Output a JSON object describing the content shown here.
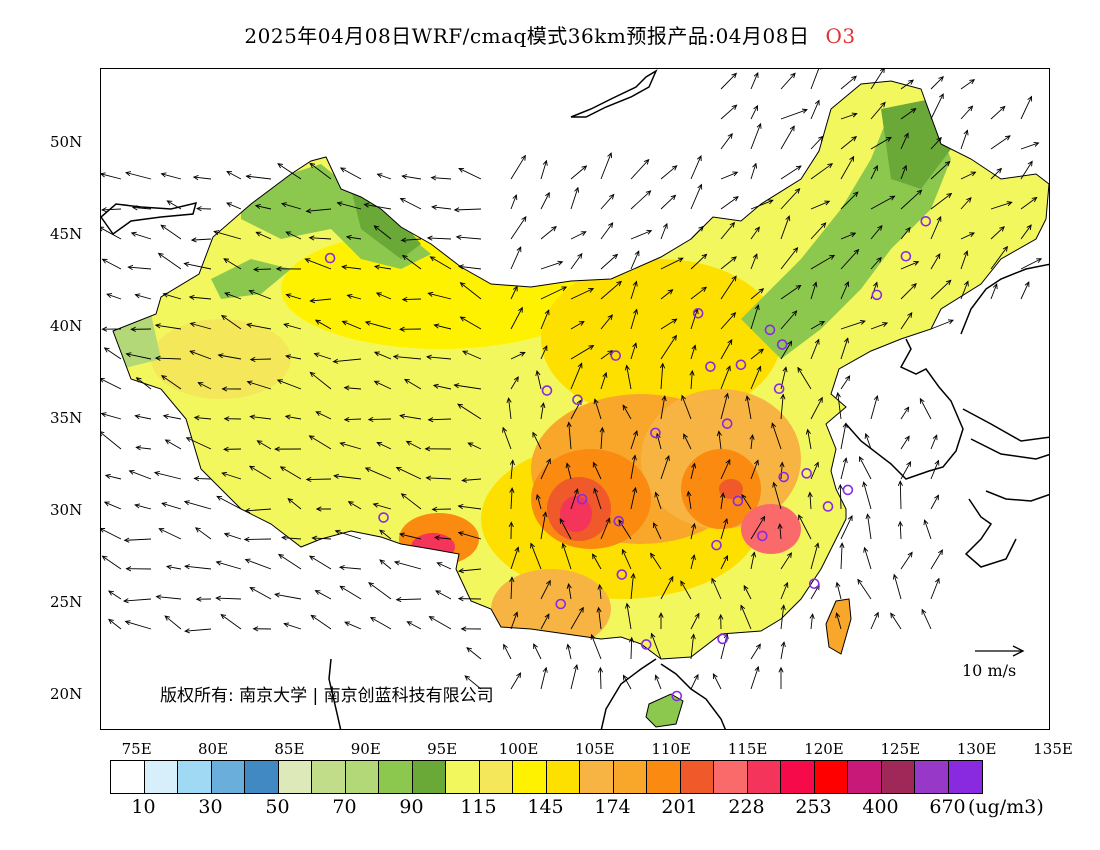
{
  "title": {
    "main": "2025年04月08日WRF/cmaq模式36km预报产品:04月08日",
    "species": "O3"
  },
  "map": {
    "lat_labels": [
      "50N",
      "45N",
      "40N",
      "35N",
      "30N",
      "25N",
      "20N"
    ],
    "lon_labels": [
      "75E",
      "80E",
      "85E",
      "90E",
      "95E",
      "100E",
      "105E",
      "110E",
      "115E",
      "120E",
      "125E",
      "130E",
      "135E"
    ],
    "copyright": "版权所有: 南京大学 | 南京创蓝科技有限公司",
    "wind_reference_label": "10 m/s",
    "stations": [
      {
        "lon": 87.6,
        "lat": 43.8
      },
      {
        "lon": 101.8,
        "lat": 36.6
      },
      {
        "lon": 103.8,
        "lat": 36.1
      },
      {
        "lon": 106.3,
        "lat": 38.5
      },
      {
        "lon": 111.7,
        "lat": 40.8
      },
      {
        "lon": 112.5,
        "lat": 37.9
      },
      {
        "lon": 114.5,
        "lat": 38.0
      },
      {
        "lon": 116.4,
        "lat": 39.9
      },
      {
        "lon": 117.2,
        "lat": 39.1
      },
      {
        "lon": 117.0,
        "lat": 36.7
      },
      {
        "lon": 113.6,
        "lat": 34.8
      },
      {
        "lon": 108.9,
        "lat": 34.3
      },
      {
        "lon": 104.1,
        "lat": 30.7
      },
      {
        "lon": 106.5,
        "lat": 29.5
      },
      {
        "lon": 114.3,
        "lat": 30.6
      },
      {
        "lon": 112.9,
        "lat": 28.2
      },
      {
        "lon": 115.9,
        "lat": 28.7
      },
      {
        "lon": 117.3,
        "lat": 31.9
      },
      {
        "lon": 118.8,
        "lat": 32.1
      },
      {
        "lon": 121.5,
        "lat": 31.2
      },
      {
        "lon": 120.2,
        "lat": 30.3
      },
      {
        "lon": 119.3,
        "lat": 26.1
      },
      {
        "lon": 113.3,
        "lat": 23.1
      },
      {
        "lon": 108.3,
        "lat": 22.8
      },
      {
        "lon": 106.7,
        "lat": 26.6
      },
      {
        "lon": 102.7,
        "lat": 25.0
      },
      {
        "lon": 91.1,
        "lat": 29.7
      },
      {
        "lon": 110.3,
        "lat": 20.0
      },
      {
        "lon": 126.6,
        "lat": 45.8
      },
      {
        "lon": 125.3,
        "lat": 43.9
      },
      {
        "lon": 123.4,
        "lat": 41.8
      }
    ]
  },
  "colorbar": {
    "colors": [
      "#ffffff",
      "#d6effa",
      "#9fd9f3",
      "#6aaedb",
      "#4189c3",
      "#dde9b8",
      "#c1dd8a",
      "#b2d878",
      "#8cc84e",
      "#6aa838",
      "#f3f75e",
      "#f4e75a",
      "#fff200",
      "#fde000",
      "#f8b442",
      "#f9a72a",
      "#fa8a10",
      "#f05a2a",
      "#fa6a6a",
      "#f4345a",
      "#f60a4a",
      "#ff0000",
      "#c81878",
      "#a02858",
      "#9838c8",
      "#8a2ae0"
    ],
    "labels": [
      "10",
      "30",
      "50",
      "70",
      "90",
      "115",
      "145",
      "174",
      "201",
      "228",
      "253",
      "400",
      "670"
    ],
    "unit": "(ug/m3)"
  }
}
